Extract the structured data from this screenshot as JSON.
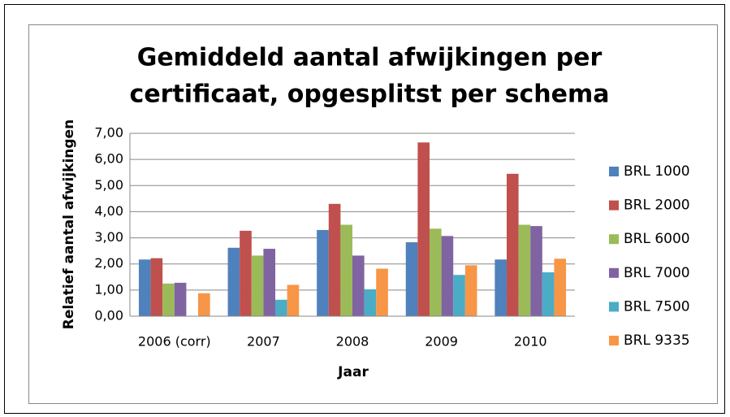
{
  "chart_data": {
    "type": "bar",
    "title": [
      "Gemiddeld aantal afwijkingen per",
      "certificaat, opgesplitst per schema"
    ],
    "x_label": "Jaar",
    "y_label": "Relatief aantal afwijkingen",
    "categories": [
      "2006 (corr)",
      "2007",
      "2008",
      "2009",
      "2010"
    ],
    "series": [
      {
        "name": "BRL 1000",
        "color": "#4f81bd",
        "values": [
          2.17,
          2.62,
          3.3,
          2.83,
          2.17
        ]
      },
      {
        "name": "BRL 2000",
        "color": "#c0504d",
        "values": [
          2.22,
          3.27,
          4.3,
          6.65,
          5.45
        ]
      },
      {
        "name": "BRL 6000",
        "color": "#9bbb59",
        "values": [
          1.25,
          2.32,
          3.5,
          3.35,
          3.5
        ]
      },
      {
        "name": "BRL 7000",
        "color": "#8064a2",
        "values": [
          1.28,
          2.58,
          2.32,
          3.07,
          3.45
        ]
      },
      {
        "name": "BRL 7500",
        "color": "#4bacc6",
        "values": [
          null,
          0.63,
          1.03,
          1.58,
          1.68
        ]
      },
      {
        "name": "BRL 9335",
        "color": "#f79646",
        "values": [
          0.88,
          1.2,
          1.82,
          1.95,
          2.2
        ]
      }
    ],
    "ylim": [
      0,
      7
    ],
    "yticks": [
      {
        "value": 0,
        "label": "0,00"
      },
      {
        "value": 1,
        "label": "1,00"
      },
      {
        "value": 2,
        "label": "2,00"
      },
      {
        "value": 3,
        "label": "3,00"
      },
      {
        "value": 4,
        "label": "4,00"
      },
      {
        "value": 5,
        "label": "5,00"
      },
      {
        "value": 6,
        "label": "6,00"
      },
      {
        "value": 7,
        "label": "7,00"
      }
    ],
    "grid": true,
    "legend": "right"
  }
}
